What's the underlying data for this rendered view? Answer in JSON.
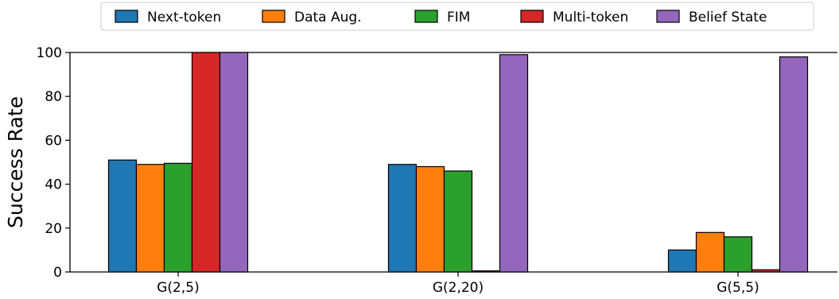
{
  "chart_data": {
    "type": "bar",
    "categories": [
      "G(2,5)",
      "G(2,20)",
      "G(5,5)"
    ],
    "series": [
      {
        "name": "Next-token",
        "color": "#1f77b4",
        "values": [
          51,
          49,
          10
        ]
      },
      {
        "name": "Data Aug.",
        "color": "#ff7f0e",
        "values": [
          49,
          48,
          18
        ]
      },
      {
        "name": "FIM",
        "color": "#2ca02c",
        "values": [
          49.5,
          46,
          16
        ]
      },
      {
        "name": "Multi-token",
        "color": "#d62728",
        "values": [
          100,
          0.5,
          1
        ]
      },
      {
        "name": "Belief State",
        "color": "#9467bd",
        "values": [
          100,
          99,
          98
        ]
      }
    ],
    "ylabel": "Success Rate",
    "xlabel": "",
    "ylim": [
      0,
      100
    ],
    "yticks": [
      0,
      20,
      40,
      60,
      80,
      100
    ],
    "grid": false,
    "legend_position": "top-center"
  }
}
